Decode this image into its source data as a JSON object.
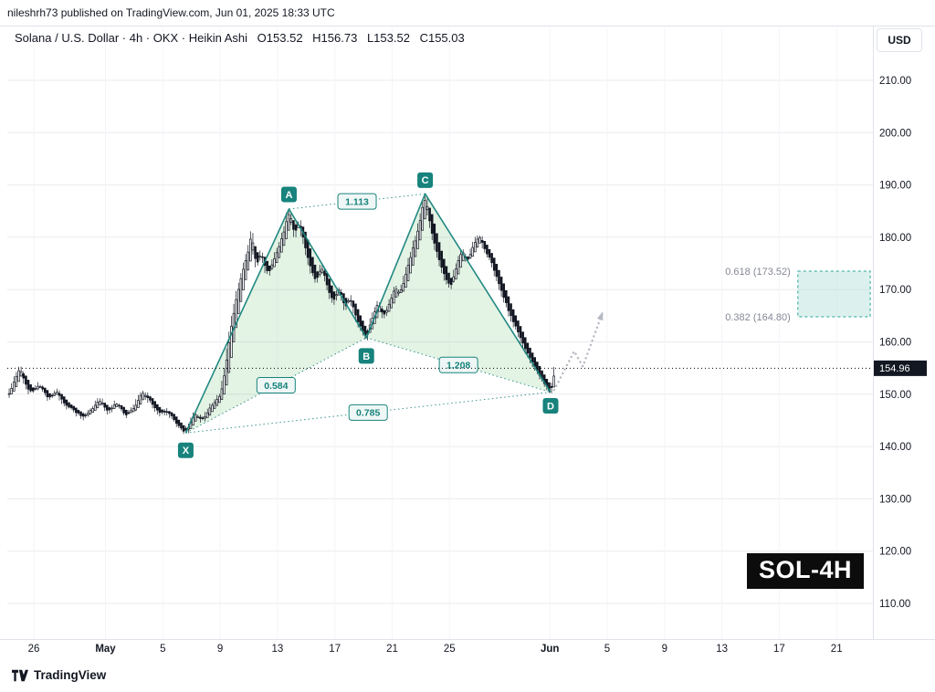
{
  "page": {
    "publish_line": "nileshrh73 published on TradingView.com, Jun 01, 2025 18:33 UTC",
    "footer_brand": "TradingView"
  },
  "toolbar": {
    "currency_button": "USD"
  },
  "legend": {
    "title": "Solana / U.S. Dollar · 4h · OKX · Heikin Ashi",
    "ohlc": {
      "open": "O153.52",
      "high": "H156.73",
      "low": "L153.52",
      "close": "C155.03"
    }
  },
  "callout": {
    "label": "SOL-4H"
  },
  "chart_data": {
    "type": "candlestick",
    "subtype": "heikin-ashi",
    "symbol": "Solana / U.S. Dollar",
    "interval": "4h",
    "exchange": "OKX",
    "last_price": 154.96,
    "y_axis": {
      "ticks": [
        210,
        200,
        190,
        180,
        170,
        160,
        150,
        140,
        130,
        120,
        110
      ],
      "format": "0.00"
    },
    "x_axis": {
      "ticks": [
        {
          "label": "26",
          "day": 0
        },
        {
          "label": "May",
          "day": 5
        },
        {
          "label": "5",
          "day": 9
        },
        {
          "label": "9",
          "day": 13
        },
        {
          "label": "13",
          "day": 17
        },
        {
          "label": "17",
          "day": 21
        },
        {
          "label": "21",
          "day": 25
        },
        {
          "label": "25",
          "day": 29
        },
        {
          "label": "Jun",
          "day": 36
        },
        {
          "label": "5",
          "day": 40
        },
        {
          "label": "9",
          "day": 44
        },
        {
          "label": "13",
          "day": 48
        },
        {
          "label": "17",
          "day": 52
        },
        {
          "label": "21",
          "day": 56
        }
      ]
    },
    "price_line": {
      "value": 154.96,
      "label": "154.96"
    },
    "price_path": [
      [
        -1.8,
        149.5
      ],
      [
        -1.4,
        152.0
      ],
      [
        -1.0,
        155.3
      ],
      [
        -0.6,
        152.0
      ],
      [
        -0.2,
        150.2
      ],
      [
        0.4,
        151.8
      ],
      [
        1.0,
        149.2
      ],
      [
        1.6,
        150.5
      ],
      [
        2.2,
        148.0
      ],
      [
        2.8,
        147.0
      ],
      [
        3.4,
        145.6
      ],
      [
        4.0,
        147.0
      ],
      [
        4.6,
        148.8
      ],
      [
        5.2,
        146.8
      ],
      [
        5.8,
        148.4
      ],
      [
        6.4,
        145.9
      ],
      [
        7.0,
        147.2
      ],
      [
        7.6,
        150.6
      ],
      [
        8.2,
        148.4
      ],
      [
        8.8,
        146.4
      ],
      [
        9.4,
        146.8
      ],
      [
        10.0,
        144.2
      ],
      [
        10.6,
        142.6
      ],
      [
        11.2,
        146.2
      ],
      [
        11.8,
        145.0
      ],
      [
        12.4,
        147.8
      ],
      [
        13.0,
        149.6
      ],
      [
        13.3,
        153.5
      ],
      [
        13.7,
        161.5
      ],
      [
        14.1,
        168.0
      ],
      [
        14.5,
        172.8
      ],
      [
        14.9,
        176.5
      ],
      [
        15.2,
        180.8
      ],
      [
        15.5,
        174.6
      ],
      [
        15.9,
        177.0
      ],
      [
        16.3,
        172.8
      ],
      [
        16.7,
        175.2
      ],
      [
        17.1,
        178.2
      ],
      [
        17.5,
        181.2
      ],
      [
        17.8,
        185.4
      ],
      [
        18.2,
        180.6
      ],
      [
        18.5,
        183.2
      ],
      [
        18.9,
        178.6
      ],
      [
        19.3,
        174.2
      ],
      [
        19.7,
        171.6
      ],
      [
        20.1,
        174.6
      ],
      [
        20.5,
        170.2
      ],
      [
        20.9,
        167.6
      ],
      [
        21.3,
        170.6
      ],
      [
        21.7,
        166.6
      ],
      [
        22.1,
        168.6
      ],
      [
        22.5,
        164.6
      ],
      [
        22.9,
        162.2
      ],
      [
        23.2,
        160.8
      ],
      [
        23.6,
        164.4
      ],
      [
        24.0,
        167.6
      ],
      [
        24.4,
        164.9
      ],
      [
        24.8,
        167.2
      ],
      [
        25.2,
        170.4
      ],
      [
        25.6,
        169.2
      ],
      [
        26.0,
        173.4
      ],
      [
        26.4,
        177.4
      ],
      [
        26.8,
        181.2
      ],
      [
        27.3,
        188.3
      ],
      [
        27.6,
        183.2
      ],
      [
        27.9,
        179.2
      ],
      [
        28.3,
        175.6
      ],
      [
        28.7,
        172.4
      ],
      [
        29.1,
        170.4
      ],
      [
        29.5,
        174.6
      ],
      [
        29.9,
        177.6
      ],
      [
        30.3,
        175.4
      ],
      [
        30.7,
        178.6
      ],
      [
        31.1,
        180.4
      ],
      [
        31.5,
        177.4
      ],
      [
        31.9,
        175.6
      ],
      [
        32.3,
        172.2
      ],
      [
        32.7,
        169.2
      ],
      [
        33.1,
        166.2
      ],
      [
        33.5,
        163.6
      ],
      [
        33.9,
        161.2
      ],
      [
        34.3,
        158.6
      ],
      [
        34.7,
        156.6
      ],
      [
        35.1,
        154.6
      ],
      [
        35.5,
        152.6
      ],
      [
        35.9,
        151.0
      ],
      [
        36.1,
        150.3
      ],
      [
        36.35,
        155.0
      ]
    ],
    "pattern": {
      "type": "XABCD",
      "color": "#17837c",
      "fill": "rgba(129,199,132,0.22)",
      "points": [
        {
          "name": "X",
          "day": 10.6,
          "price": 142.6,
          "label_offset": 19
        },
        {
          "name": "A",
          "day": 17.8,
          "price": 185.4,
          "label_offset": -16
        },
        {
          "name": "B",
          "day": 23.2,
          "price": 160.8,
          "label_offset": 20
        },
        {
          "name": "C",
          "day": 27.3,
          "price": 188.3,
          "label_offset": -15
        },
        {
          "name": "D",
          "day": 36.05,
          "price": 150.4,
          "label_offset": 15
        }
      ],
      "ratio_labels": [
        {
          "text": "1.113",
          "between": [
            "A",
            "C"
          ]
        },
        {
          "text": "0.584",
          "between": [
            "X",
            "B"
          ]
        },
        {
          "text": "0.785",
          "between": [
            "X",
            "D"
          ]
        },
        {
          "text": "1.208",
          "between": [
            "B",
            "D"
          ]
        }
      ]
    },
    "fib": {
      "color": "#26a69a",
      "zone_day_start": 53.3,
      "zone_day_end": 58.35,
      "levels": [
        {
          "label": "0.618 (173.52)",
          "price": 173.52
        },
        {
          "label": "0.382 (164.80)",
          "price": 164.8
        }
      ]
    },
    "projection_arrow": [
      [
        36.3,
        150.8
      ],
      [
        37.7,
        158.2
      ],
      [
        38.3,
        155.3
      ],
      [
        39.7,
        165.8
      ]
    ]
  }
}
